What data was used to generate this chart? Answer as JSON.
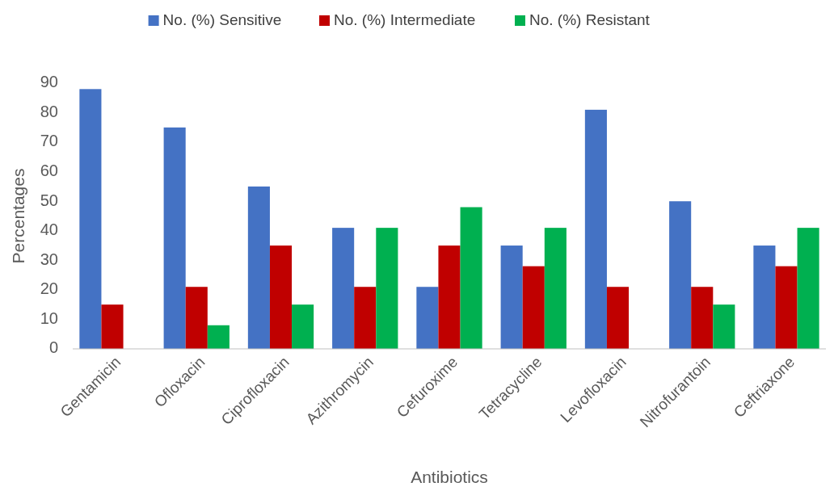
{
  "chart_data": {
    "type": "bar",
    "xlabel": "Antibiotics",
    "ylabel": "Percentages",
    "categories": [
      "Gentamicin",
      "Ofloxacin",
      "Ciprofloxacin",
      "Azithromycin",
      "Cefuroxime",
      "Tetracycline",
      "Levofloxacin",
      "Nitrofurantoin",
      "Ceftriaxone"
    ],
    "series": [
      {
        "name": "No. (%) Sensitive",
        "color": "#4472c4",
        "values": [
          88,
          75,
          55,
          41,
          21,
          35,
          81,
          50,
          35
        ]
      },
      {
        "name": "No. (%) Intermediate",
        "color": "#c00000",
        "values": [
          15,
          21,
          35,
          21,
          35,
          28,
          21,
          21,
          28
        ]
      },
      {
        "name": "No. (%) Resistant",
        "color": "#00b050",
        "values": [
          0,
          8,
          15,
          41,
          48,
          41,
          0,
          15,
          41
        ]
      }
    ],
    "ylim": [
      0,
      90
    ],
    "yticks": [
      0,
      10,
      20,
      30,
      40,
      50,
      60,
      70,
      80,
      90
    ],
    "grid": false,
    "legend": "top"
  }
}
